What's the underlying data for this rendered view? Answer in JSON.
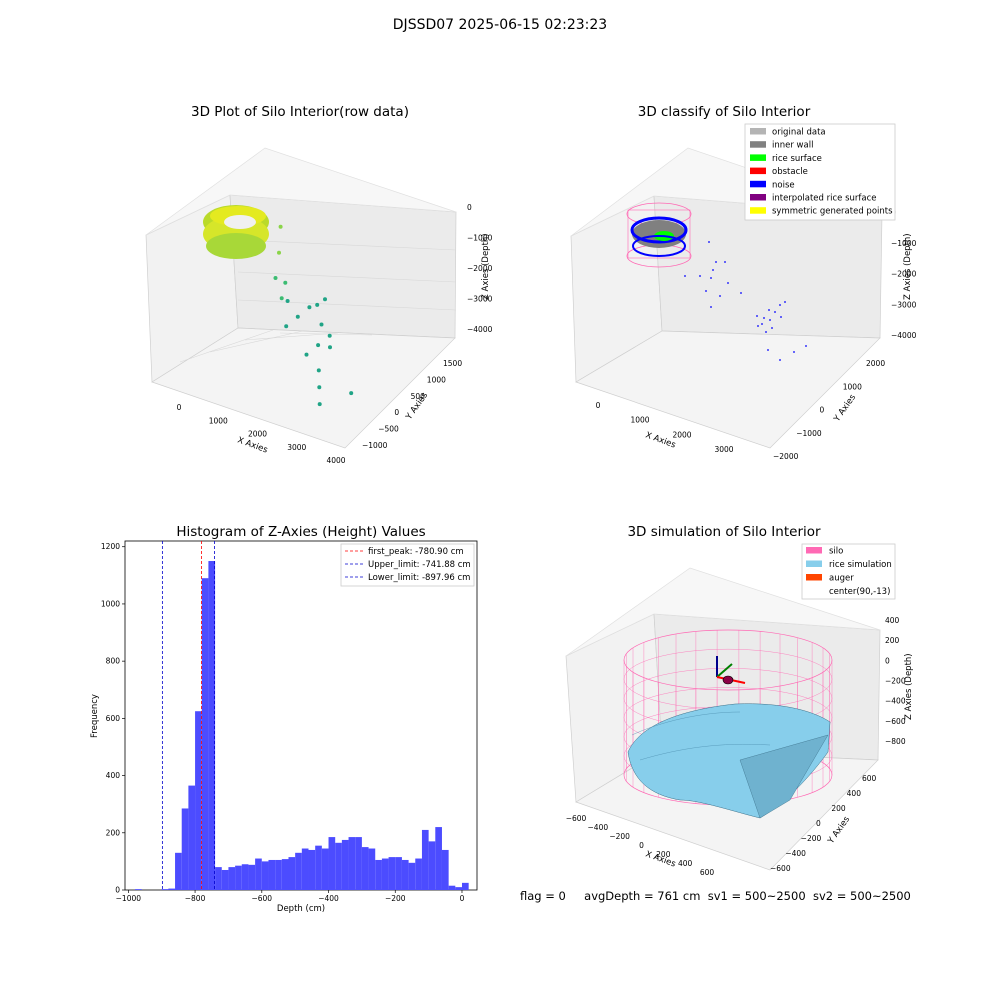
{
  "page_title": "DJSSD07 2025-06-15 02:23:23",
  "footer": {
    "flag": "flag = 0",
    "avg_depth": "avgDepth = 761 cm",
    "sv1": "sv1 = 500~2500",
    "sv2": "sv2 = 500~2500"
  },
  "colors": {
    "hist_bar": "#4c4cff",
    "first_peak": "#ff0000",
    "limits": "#0000cc",
    "silo": "#ff69b4",
    "rice": "#87ceeb",
    "auger": "#ff4500",
    "noise": "#0000ff",
    "inner_wall": "#808080",
    "rice_surface": "#00ff00"
  },
  "chart_data": [
    {
      "type": "scatter",
      "title": "3D Plot of Silo Interior(row data)",
      "xlabel": "X Axies",
      "ylabel": "Y Axies",
      "zlabel": "Z Axies (Depth)",
      "xticks": [
        "0",
        "1000",
        "2000",
        "3000",
        "4000"
      ],
      "yticks": [
        "−1000",
        "−500",
        "0",
        "500",
        "1000",
        "1500"
      ],
      "zticks": [
        "0",
        "−1000",
        "−2000",
        "−3000",
        "−4000"
      ],
      "xlim": [
        -600,
        4200
      ],
      "ylim": [
        -1200,
        1700
      ],
      "zlim": [
        -4300,
        300
      ],
      "points": [
        {
          "x": 900,
          "y": 600,
          "z": -1000
        },
        {
          "x": 1050,
          "y": 400,
          "z": -1500
        },
        {
          "x": 1150,
          "y": 200,
          "z": -2000
        },
        {
          "x": 1300,
          "y": 300,
          "z": -2200
        },
        {
          "x": 1400,
          "y": 100,
          "z": -2400
        },
        {
          "x": 1500,
          "y": 150,
          "z": -2500
        },
        {
          "x": 1700,
          "y": -100,
          "z": -2900
        },
        {
          "x": 1800,
          "y": 100,
          "z": -2800
        },
        {
          "x": 1900,
          "y": 300,
          "z": -2700
        },
        {
          "x": 2000,
          "y": 400,
          "z": -2700
        },
        {
          "x": 2100,
          "y": 500,
          "z": -2600
        },
        {
          "x": 2200,
          "y": 300,
          "z": -3100
        },
        {
          "x": 2300,
          "y": -200,
          "z": -3400
        },
        {
          "x": 2400,
          "y": 0,
          "z": -3300
        },
        {
          "x": 2500,
          "y": 200,
          "z": -3200
        },
        {
          "x": 2600,
          "y": 100,
          "z": -3400
        },
        {
          "x": 2700,
          "y": -300,
          "z": -3600
        },
        {
          "x": 2900,
          "y": -500,
          "z": -3800
        },
        {
          "x": 3100,
          "y": -700,
          "z": -4000
        },
        {
          "x": 3600,
          "y": -400,
          "z": -3800
        }
      ]
    },
    {
      "type": "scatter",
      "title": "3D classify of Silo Interior",
      "xlabel": "X Axies",
      "ylabel": "Y Axies",
      "zlabel": "Z Axies (Depth)",
      "xticks": [
        "0",
        "1000",
        "2000",
        "3000"
      ],
      "yticks": [
        "−2000",
        "−1000",
        "0",
        "1000",
        "2000"
      ],
      "zticks": [
        "0",
        "−1000",
        "−2000",
        "−3000",
        "−4000"
      ],
      "legend": [
        "original data",
        "inner wall",
        "rice surface",
        "obstacle",
        "noise",
        "interpolated rice surface",
        "symmetric generated points"
      ],
      "legend_colors": [
        "#b4b4b4",
        "#808080",
        "#00ff00",
        "#ff0000",
        "#0000ff",
        "#800080",
        "#ffff00"
      ],
      "legend_position": "upper right"
    },
    {
      "type": "bar",
      "title": "Histogram of Z-Axies (Height) Values",
      "xlabel": "Depth (cm)",
      "ylabel": "Frequency",
      "xlim": [
        -1010,
        45
      ],
      "ylim": [
        0,
        1220
      ],
      "xticks": [
        -1000,
        -800,
        -600,
        -400,
        -200,
        0
      ],
      "yticks": [
        0,
        200,
        400,
        600,
        800,
        1000,
        1200
      ],
      "bin_start": -1000,
      "bin_width": 20,
      "counts": [
        0,
        3,
        0,
        0,
        0,
        3,
        5,
        130,
        285,
        365,
        625,
        1090,
        1150,
        80,
        70,
        80,
        85,
        90,
        88,
        110,
        100,
        105,
        105,
        108,
        115,
        130,
        145,
        140,
        155,
        145,
        185,
        165,
        175,
        185,
        185,
        150,
        145,
        105,
        110,
        115,
        115,
        105,
        95,
        110,
        210,
        170,
        220,
        140,
        15,
        10,
        25
      ],
      "vlines": [
        {
          "label": "first_peak: -780.90 cm",
          "x": -780.9,
          "color": "#ff0000"
        },
        {
          "label": "Upper_limit: -741.88 cm",
          "x": -741.88,
          "color": "#0000cc"
        },
        {
          "label": "Lower_limit: -897.96 cm",
          "x": -897.96,
          "color": "#0000cc"
        }
      ],
      "legend_position": "upper right"
    },
    {
      "type": "surface",
      "title": "3D simulation of Silo Interior",
      "xlabel": "X Axies",
      "ylabel": "Y Axies",
      "zlabel": "Z Axies (Depth)",
      "xticks": [
        "−600",
        "−400",
        "−200",
        "0",
        "200",
        "400",
        "600"
      ],
      "yticks": [
        "−600",
        "−400",
        "−200",
        "0",
        "200",
        "400",
        "600"
      ],
      "zticks": [
        "400",
        "200",
        "0",
        "−200",
        "−400",
        "−600",
        "−800"
      ],
      "legend": [
        "silo",
        "rice simulation",
        "auger",
        "center(90,-13)"
      ],
      "legend_colors": [
        "#ff69b4",
        "#87ceeb",
        "#ff4500",
        "#ffffff"
      ],
      "legend_position": "upper right"
    }
  ]
}
